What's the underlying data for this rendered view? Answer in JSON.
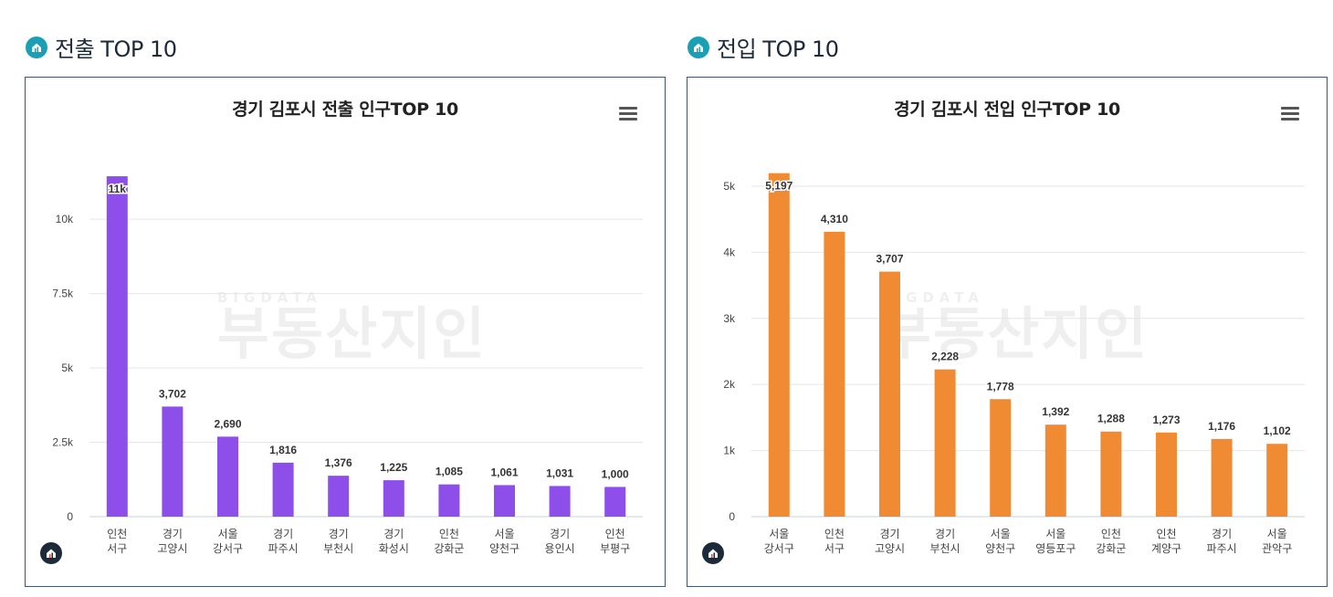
{
  "sections": [
    {
      "heading": "전출 TOP 10"
    },
    {
      "heading": "전입 TOP 10"
    }
  ],
  "watermark": {
    "small": "BIGDATA",
    "big": "부동산지인"
  },
  "icons": {
    "section": "house-icon",
    "menu": "hamburger-menu-icon",
    "badge": "house-logo-icon"
  },
  "chart_data": [
    {
      "type": "bar",
      "title": "경기 김포시 전출 인구TOP 10",
      "color": "#8e4ee9",
      "categories": [
        [
          "인천",
          "서구"
        ],
        [
          "경기",
          "고양시"
        ],
        [
          "서울",
          "강서구"
        ],
        [
          "경기",
          "파주시"
        ],
        [
          "경기",
          "부천시"
        ],
        [
          "경기",
          "화성시"
        ],
        [
          "인천",
          "강화군"
        ],
        [
          "서울",
          "양천구"
        ],
        [
          "경기",
          "용인시"
        ],
        [
          "인천",
          "부평구"
        ]
      ],
      "values": [
        11445,
        3702,
        2690,
        1816,
        1376,
        1225,
        1085,
        1061,
        1031,
        1000
      ],
      "data_labels": [
        "11k",
        "3,702",
        "2,690",
        "1,816",
        "1,376",
        "1,225",
        "1,085",
        "1,061",
        "1,031",
        "1,000"
      ],
      "ylim": [
        0,
        12000
      ],
      "yticks": [
        0,
        2500,
        5000,
        7500,
        10000
      ],
      "ytick_labels": [
        "0",
        "2.5k",
        "5k",
        "7.5k",
        "10k"
      ],
      "grid": true,
      "legend": "none"
    },
    {
      "type": "bar",
      "title": "경기 김포시 전입 인구TOP 10",
      "color": "#f08a33",
      "categories": [
        [
          "서울",
          "강서구"
        ],
        [
          "인천",
          "서구"
        ],
        [
          "경기",
          "고양시"
        ],
        [
          "경기",
          "부천시"
        ],
        [
          "서울",
          "양천구"
        ],
        [
          "서울",
          "영등포구"
        ],
        [
          "인천",
          "강화군"
        ],
        [
          "인천",
          "계양구"
        ],
        [
          "경기",
          "파주시"
        ],
        [
          "서울",
          "관악구"
        ]
      ],
      "values": [
        5197,
        4310,
        3707,
        2228,
        1778,
        1392,
        1288,
        1273,
        1176,
        1102
      ],
      "data_labels": [
        "5,197",
        "4,310",
        "3,707",
        "2,228",
        "1,778",
        "1,392",
        "1,288",
        "1,273",
        "1,176",
        "1,102"
      ],
      "ylim": [
        0,
        5400
      ],
      "yticks": [
        0,
        1000,
        2000,
        3000,
        4000,
        5000
      ],
      "ytick_labels": [
        "0",
        "1k",
        "2k",
        "3k",
        "4k",
        "5k"
      ],
      "grid": true,
      "legend": "none"
    }
  ]
}
